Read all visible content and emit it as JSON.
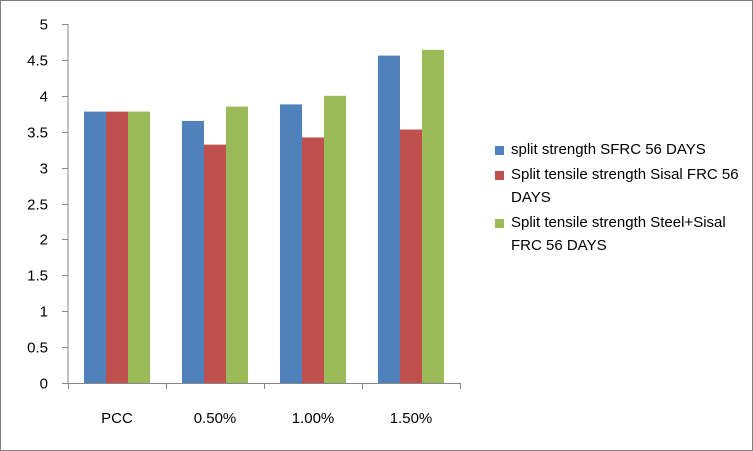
{
  "chart_data": {
    "type": "bar",
    "categories": [
      "PCC",
      "0.50%",
      "1.00%",
      "1.50%"
    ],
    "series": [
      {
        "name": "split strength SFRC 56 DAYS",
        "color": "#4f81bd",
        "values": [
          3.78,
          3.65,
          3.88,
          4.56
        ]
      },
      {
        "name": "Split tensile strength Sisal FRC 56 DAYS",
        "color": "#c0504d",
        "values": [
          3.78,
          3.32,
          3.42,
          3.53
        ]
      },
      {
        "name": "Split tensile strength Steel+Sisal FRC 56 DAYS",
        "color": "#9bbb59",
        "values": [
          3.78,
          3.85,
          4.0,
          4.64
        ]
      }
    ],
    "title": "",
    "xlabel": "",
    "ylabel": "",
    "ylim": [
      0,
      5
    ],
    "yticks": [
      "0",
      "0.5",
      "1",
      "1.5",
      "2",
      "2.5",
      "3",
      "3.5",
      "4",
      "4.5",
      "5"
    ],
    "grid": false,
    "legend": "right"
  }
}
